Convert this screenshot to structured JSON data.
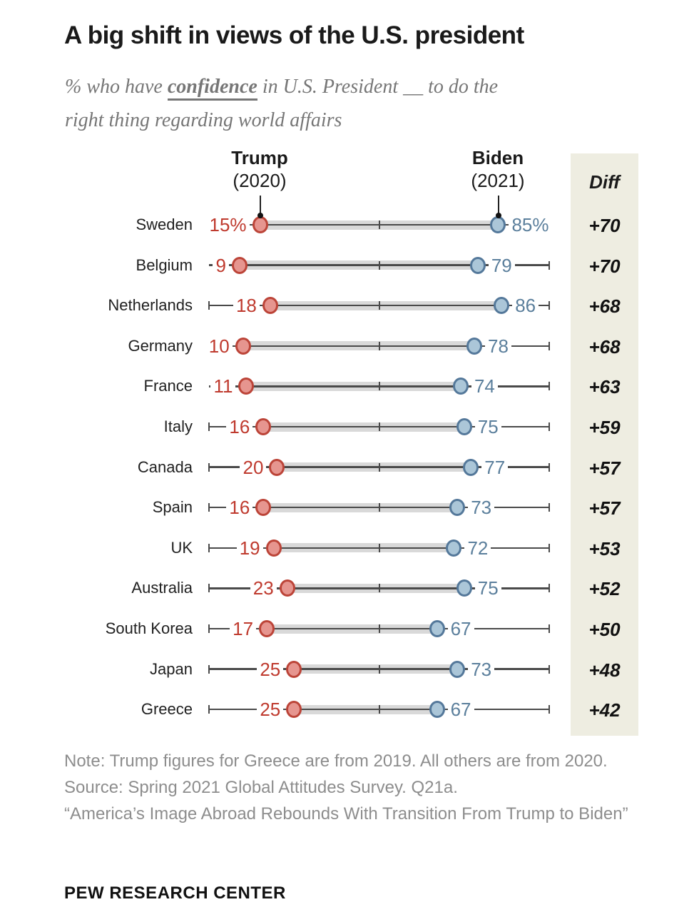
{
  "title": "A big shift in views of the U.S. president",
  "subtitle": {
    "line1_prefix": "% who have ",
    "line1_emphasis": "confidence",
    "line1_suffix": " in U.S. President __ to do the",
    "line2": "right thing regarding world affairs"
  },
  "header": {
    "trump_name": "Trump",
    "trump_year": "(2020)",
    "biden_name": "Biden",
    "biden_year": "(2021)",
    "diff_label": "Diff"
  },
  "chart_data": {
    "type": "dumbbell",
    "x_axis": {
      "min": 0,
      "max": 100,
      "center_tick": 50
    },
    "series": [
      {
        "name": "Trump (2020)",
        "color": "#bf3a2e"
      },
      {
        "name": "Biden (2021)",
        "color": "#5b7f9c"
      }
    ],
    "rows": [
      {
        "country": "Sweden",
        "trump": 15,
        "biden": 85,
        "trump_label": "15%",
        "biden_label": "85%",
        "diff": "+70",
        "left_cap": false,
        "right_cap": false
      },
      {
        "country": "Belgium",
        "trump": 9,
        "biden": 79,
        "trump_label": "9",
        "biden_label": "79",
        "diff": "+70",
        "left_cap": false,
        "right_cap": true
      },
      {
        "country": "Netherlands",
        "trump": 18,
        "biden": 86,
        "trump_label": "18",
        "biden_label": "86",
        "diff": "+68",
        "left_cap": true,
        "right_cap": true
      },
      {
        "country": "Germany",
        "trump": 10,
        "biden": 78,
        "trump_label": "10",
        "biden_label": "78",
        "diff": "+68",
        "left_cap": false,
        "right_cap": true
      },
      {
        "country": "France",
        "trump": 11,
        "biden": 74,
        "trump_label": "11",
        "biden_label": "74",
        "diff": "+63",
        "left_cap": false,
        "right_cap": true
      },
      {
        "country": "Italy",
        "trump": 16,
        "biden": 75,
        "trump_label": "16",
        "biden_label": "75",
        "diff": "+59",
        "left_cap": true,
        "right_cap": true
      },
      {
        "country": "Canada",
        "trump": 20,
        "biden": 77,
        "trump_label": "20",
        "biden_label": "77",
        "diff": "+57",
        "left_cap": true,
        "right_cap": true
      },
      {
        "country": "Spain",
        "trump": 16,
        "biden": 73,
        "trump_label": "16",
        "biden_label": "73",
        "diff": "+57",
        "left_cap": true,
        "right_cap": true
      },
      {
        "country": "UK",
        "trump": 19,
        "biden": 72,
        "trump_label": "19",
        "biden_label": "72",
        "diff": "+53",
        "left_cap": true,
        "right_cap": true
      },
      {
        "country": "Australia",
        "trump": 23,
        "biden": 75,
        "trump_label": "23",
        "biden_label": "75",
        "diff": "+52",
        "left_cap": true,
        "right_cap": true
      },
      {
        "country": "South Korea",
        "trump": 17,
        "biden": 67,
        "trump_label": "17",
        "biden_label": "67",
        "diff": "+50",
        "left_cap": true,
        "right_cap": true
      },
      {
        "country": "Japan",
        "trump": 25,
        "biden": 73,
        "trump_label": "25",
        "biden_label": "73",
        "diff": "+48",
        "left_cap": true,
        "right_cap": true
      },
      {
        "country": "Greece",
        "trump": 25,
        "biden": 67,
        "trump_label": "25",
        "biden_label": "67",
        "diff": "+42",
        "left_cap": true,
        "right_cap": true
      }
    ]
  },
  "footer": {
    "note": "Note: Trump figures for Greece are from 2019. All others are from 2020.",
    "source": "Source: Spring 2021 Global Attitudes Survey. Q21a.",
    "quote": "“America’s Image Abroad Rebounds With Transition From Trump to Biden”",
    "brand": "PEW RESEARCH CENTER"
  },
  "colors": {
    "trump_text": "#bf3a2e",
    "trump_dot_fill": "#e6958f",
    "trump_dot_stroke": "#bc4438",
    "biden_text": "#5b7f9c",
    "biden_dot_fill": "#abc6d8",
    "biden_dot_stroke": "#54789a",
    "range_bar": "#d9d9d9",
    "axis_line": "#4a4a4a",
    "diff_column_bg": "#eeede1",
    "title_text": "#1a1a1a",
    "subtitle_text": "#767676",
    "footer_text": "#8d8d8d"
  }
}
